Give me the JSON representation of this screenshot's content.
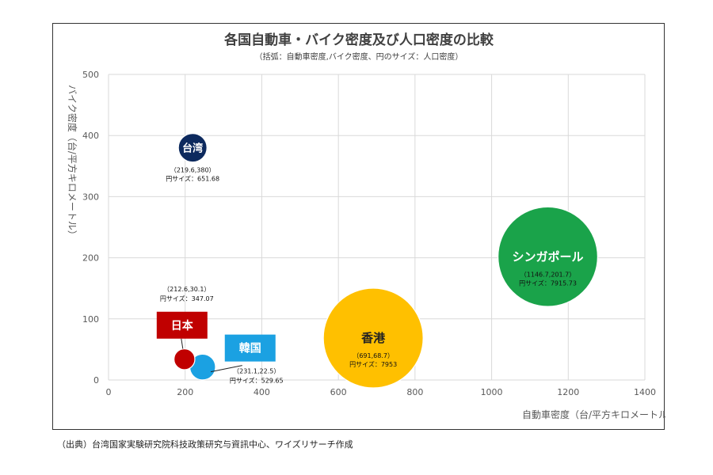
{
  "chart_data": {
    "type": "bubble",
    "title": "各国自動車・バイク密度及び人口密度の比較",
    "subtitle": "（括弧：自動車密度,バイク密度、円のサイズ：人口密度）",
    "xlabel": "自動車密度（台/平方キロメートル）",
    "ylabel": "バイク密度（台/平方キロメートル）",
    "xlim": [
      0,
      1400
    ],
    "ylim": [
      0,
      500
    ],
    "xticks": [
      "0",
      "200",
      "400",
      "600",
      "800",
      "1000",
      "1200",
      "1400"
    ],
    "yticks": [
      "0",
      "100",
      "200",
      "300",
      "400",
      "500"
    ],
    "grid": true,
    "series": [
      {
        "name": "台湾",
        "x": 219.6,
        "y": 380,
        "size": 651.68,
        "color": "#0d2a5e",
        "coord_label": "（219.6,380）",
        "size_label": "円サイズ：651.68"
      },
      {
        "name": "日本",
        "x": 212.6,
        "y": 30.1,
        "size": 347.07,
        "color": "#c00000",
        "coord_label": "（212.6,30.1）",
        "size_label": "円サイズ：347.07"
      },
      {
        "name": "韓国",
        "x": 231.1,
        "y": 22.5,
        "size": 529.65,
        "color": "#1ba1e2",
        "coord_label": "（231.1,22.5）",
        "size_label": "円サイズ：529.65"
      },
      {
        "name": "香港",
        "x": 691,
        "y": 68.7,
        "size": 7953,
        "color": "#ffc000",
        "coord_label": "（691,68.7）",
        "size_label": "円サイズ：7953"
      },
      {
        "name": "シンガポール",
        "x": 1146.7,
        "y": 201.7,
        "size": 7915.73,
        "color": "#1aa34a",
        "coord_label": "（1146.7,201.7）",
        "size_label": "円サイズ：7915.73"
      }
    ]
  },
  "source_note": "（出典）台湾国家実験研究院科技政策研究与資訊中心、ワイズリサーチ作成"
}
